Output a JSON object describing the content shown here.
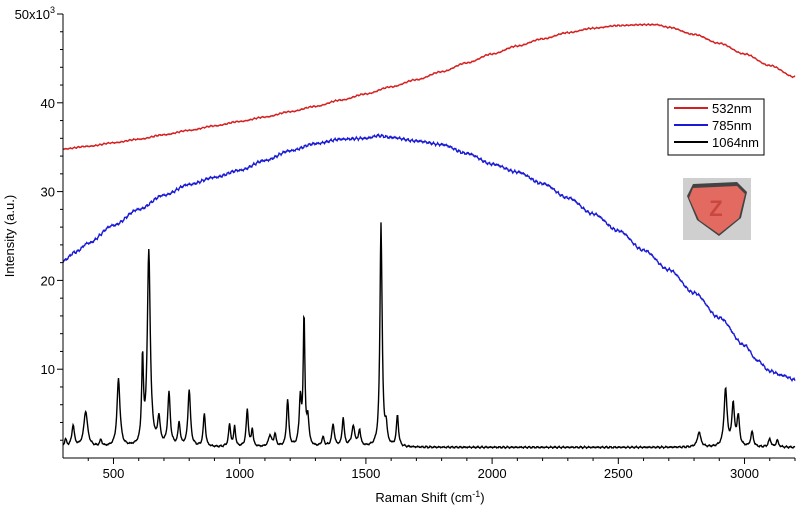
{
  "chart_data": {
    "type": "line",
    "title": "",
    "xlabel": "Raman Shift (cm",
    "xlabel_sup": "-1",
    "xlabel_close": ")",
    "ylabel": "Intensity (a.u.)",
    "xlim": [
      300,
      3200
    ],
    "ylim": [
      0,
      50000
    ],
    "x_ticks": [
      500,
      1000,
      1500,
      2000,
      2500,
      3000
    ],
    "y_ticks": [
      {
        "value": 10000,
        "label": "10"
      },
      {
        "value": 20000,
        "label": "20"
      },
      {
        "value": 30000,
        "label": "30"
      },
      {
        "value": 40000,
        "label": "40"
      },
      {
        "value": 50000,
        "label": "50x10",
        "sup": "3"
      }
    ],
    "grid": false,
    "legend_position": "right",
    "series": [
      {
        "name": "532nm",
        "color": "#d42020",
        "points": [
          [
            300,
            34800
          ],
          [
            400,
            35100
          ],
          [
            500,
            35500
          ],
          [
            600,
            35900
          ],
          [
            700,
            36400
          ],
          [
            800,
            36900
          ],
          [
            900,
            37400
          ],
          [
            1000,
            37900
          ],
          [
            1100,
            38400
          ],
          [
            1200,
            39000
          ],
          [
            1300,
            39600
          ],
          [
            1400,
            40300
          ],
          [
            1500,
            41000
          ],
          [
            1600,
            41800
          ],
          [
            1700,
            42600
          ],
          [
            1800,
            43500
          ],
          [
            1900,
            44500
          ],
          [
            2000,
            45500
          ],
          [
            2100,
            46400
          ],
          [
            2200,
            47200
          ],
          [
            2300,
            47900
          ],
          [
            2400,
            48400
          ],
          [
            2500,
            48700
          ],
          [
            2600,
            48800
          ],
          [
            2650,
            48800
          ],
          [
            2700,
            48500
          ],
          [
            2800,
            47700
          ],
          [
            2900,
            46700
          ],
          [
            3000,
            45500
          ],
          [
            3100,
            44200
          ],
          [
            3200,
            42900
          ]
        ]
      },
      {
        "name": "785nm",
        "color": "#1a1ad4",
        "points": [
          [
            300,
            22200
          ],
          [
            350,
            23200
          ],
          [
            400,
            24200
          ],
          [
            500,
            26200
          ],
          [
            600,
            28000
          ],
          [
            700,
            29600
          ],
          [
            800,
            30800
          ],
          [
            900,
            31600
          ],
          [
            1000,
            32400
          ],
          [
            1100,
            33500
          ],
          [
            1200,
            34600
          ],
          [
            1300,
            35400
          ],
          [
            1400,
            35900
          ],
          [
            1500,
            36000
          ],
          [
            1550,
            36300
          ],
          [
            1600,
            36100
          ],
          [
            1700,
            35700
          ],
          [
            1800,
            35300
          ],
          [
            1900,
            34300
          ],
          [
            2000,
            33100
          ],
          [
            2100,
            32200
          ],
          [
            2200,
            30900
          ],
          [
            2300,
            29300
          ],
          [
            2400,
            27500
          ],
          [
            2500,
            25600
          ],
          [
            2600,
            23400
          ],
          [
            2700,
            21200
          ],
          [
            2800,
            18600
          ],
          [
            2900,
            15800
          ],
          [
            3000,
            12700
          ],
          [
            3050,
            11000
          ],
          [
            3100,
            9800
          ],
          [
            3150,
            9300
          ],
          [
            3200,
            8800
          ]
        ]
      },
      {
        "name": "1064nm",
        "color": "#000000",
        "baseline": 1200,
        "peaks": [
          [
            310,
            800,
            5
          ],
          [
            340,
            2400,
            6
          ],
          [
            390,
            4000,
            9
          ],
          [
            450,
            700,
            5
          ],
          [
            520,
            7600,
            7
          ],
          [
            615,
            9500,
            4
          ],
          [
            640,
            22000,
            7
          ],
          [
            680,
            3000,
            6
          ],
          [
            720,
            5900,
            6
          ],
          [
            760,
            2600,
            5
          ],
          [
            800,
            6400,
            6
          ],
          [
            860,
            3700,
            5
          ],
          [
            960,
            2500,
            5
          ],
          [
            980,
            2300,
            4
          ],
          [
            1030,
            4200,
            5
          ],
          [
            1050,
            2000,
            4
          ],
          [
            1120,
            1300,
            7
          ],
          [
            1140,
            1400,
            5
          ],
          [
            1190,
            5300,
            5
          ],
          [
            1240,
            5300,
            5
          ],
          [
            1255,
            14600,
            4
          ],
          [
            1270,
            3000,
            5
          ],
          [
            1330,
            1000,
            6
          ],
          [
            1370,
            2500,
            6
          ],
          [
            1410,
            3200,
            5
          ],
          [
            1450,
            2200,
            8
          ],
          [
            1475,
            1800,
            5
          ],
          [
            1560,
            25200,
            5
          ],
          [
            1580,
            2000,
            5
          ],
          [
            1625,
            3500,
            5
          ],
          [
            2820,
            1700,
            8
          ],
          [
            2925,
            6500,
            7
          ],
          [
            2955,
            4700,
            6
          ],
          [
            2975,
            3300,
            6
          ],
          [
            3030,
            1700,
            6
          ],
          [
            3100,
            900,
            6
          ],
          [
            3130,
            800,
            5
          ]
        ]
      }
    ]
  },
  "legend": {
    "items": [
      {
        "label": "532nm",
        "color": "#d42020"
      },
      {
        "label": "785nm",
        "color": "#1a1ad4"
      },
      {
        "label": "1064nm",
        "color": "#000000"
      }
    ]
  },
  "inset": {
    "icon": "tablet-photo-icon",
    "pill_color": "#e26a60",
    "imprint": "Z"
  }
}
